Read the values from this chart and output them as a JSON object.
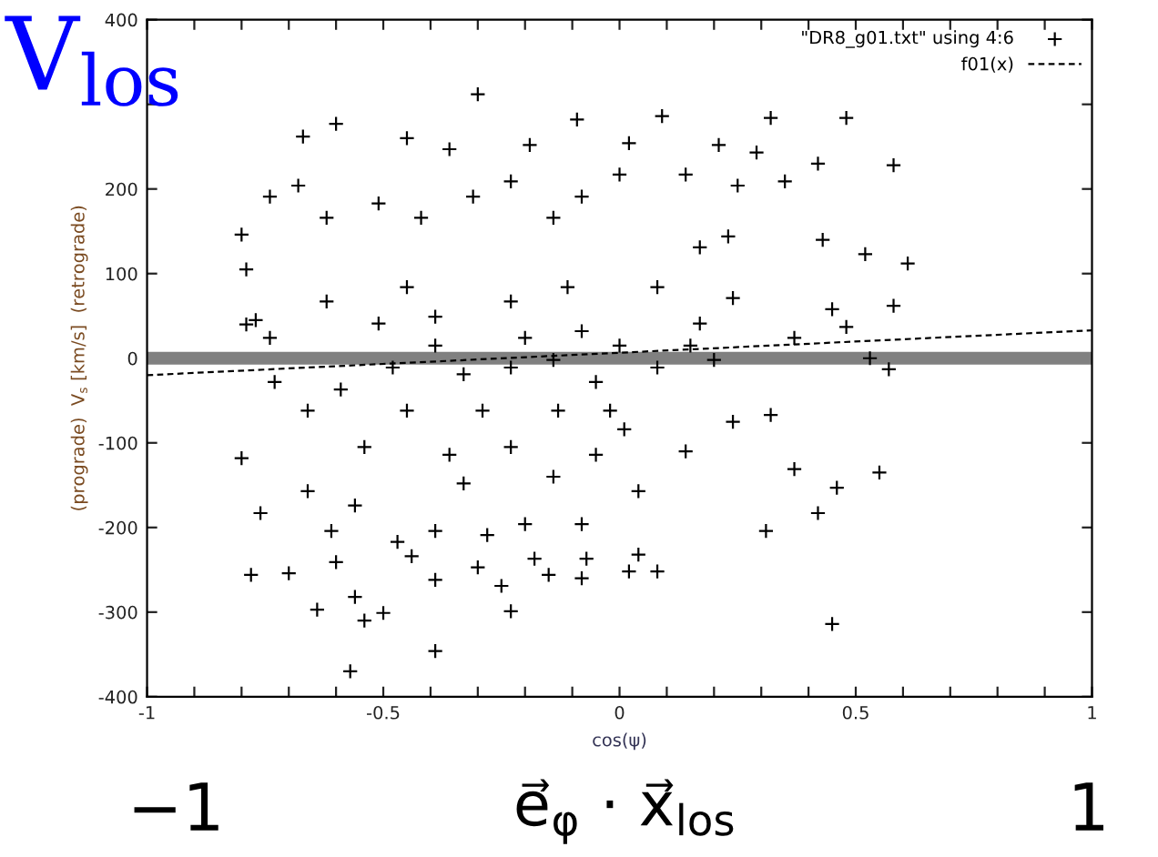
{
  "chart_data": {
    "type": "scatter",
    "xlabel": "cos(ψ)",
    "ylabel": "(prograde)  V$_{s}$ [km/s]  (retrograde)",
    "annotations": [
      "V$_{los}$",
      "−1",
      "e⃗$_{φ}$ · x⃗$_{los}$",
      "1"
    ],
    "xlim": [
      -1,
      1
    ],
    "ylim": [
      -400,
      400
    ],
    "xticks": [
      -1,
      {
        "value": -0.9,
        "label": null
      },
      {
        "value": -0.8,
        "label": null
      },
      {
        "value": -0.7,
        "label": null
      },
      {
        "value": -0.6,
        "label": null
      },
      -0.5,
      {
        "value": -0.4,
        "label": null
      },
      {
        "value": -0.3,
        "label": null
      },
      {
        "value": -0.2,
        "label": null
      },
      {
        "value": -0.1,
        "label": null
      },
      0,
      {
        "value": 0.1,
        "label": null
      },
      {
        "value": 0.2,
        "label": null
      },
      {
        "value": 0.3,
        "label": null
      },
      {
        "value": 0.4,
        "label": null
      },
      0.5,
      {
        "value": 0.6,
        "label": null
      },
      {
        "value": 0.7,
        "label": null
      },
      {
        "value": 0.8,
        "label": null
      },
      {
        "value": 0.9,
        "label": null
      },
      1
    ],
    "yticks": [
      -400,
      -300,
      -200,
      -100,
      0,
      100,
      200,
      {
        "value": 300,
        "label": null
      },
      400
    ],
    "grid": false,
    "legend": "top right",
    "ref_lines": [
      {
        "axis": "y",
        "value": 0,
        "color": "#808080"
      }
    ],
    "series": [
      {
        "name": "\"DR8_g01.txt\" using 4:6",
        "color": "#000000",
        "marker": "cross",
        "x": [
          -0.3,
          -0.67,
          -0.6,
          -0.09,
          0.09,
          0.32,
          0.48,
          0.58,
          0.61,
          0.52,
          -0.8,
          -0.74,
          -0.68,
          -0.45,
          -0.36,
          -0.19,
          0.02,
          0.21,
          0.29,
          0.42,
          0.14,
          0.25,
          -0.79,
          -0.62,
          -0.51,
          -0.31,
          -0.23,
          -0.08,
          0.0,
          0.35,
          0.43,
          0.17,
          0.23,
          -0.14,
          -0.42,
          -0.8,
          -0.76,
          -0.66,
          -0.61,
          -0.56,
          -0.47,
          -0.39,
          -0.28,
          -0.2,
          -0.08,
          0.31,
          0.42,
          0.46,
          0.55,
          0.58,
          0.57,
          0.53,
          0.48,
          0.37,
          0.45,
          0.37,
          0.32,
          0.24,
          0.14,
          0.04,
          0.01,
          -0.36,
          -0.45,
          -0.54,
          -0.66,
          -0.77,
          -0.79,
          -0.74,
          -0.62,
          -0.51,
          -0.39,
          -0.23,
          -0.08,
          0.08,
          0.17,
          0.24,
          -0.33,
          -0.23,
          -0.14,
          -0.05,
          0.08,
          0.2,
          -0.48,
          -0.59,
          -0.73,
          -0.29,
          -0.13,
          -0.02,
          -0.39,
          -0.2,
          0.0,
          -0.23,
          -0.14,
          -0.05,
          -0.33,
          0.15,
          -0.45,
          -0.11,
          -0.78,
          -0.7,
          -0.6,
          -0.64,
          -0.56,
          -0.54,
          -0.5,
          -0.57,
          -0.39,
          -0.39,
          -0.44,
          -0.3,
          -0.25,
          -0.23,
          -0.18,
          -0.15,
          -0.08,
          -0.07,
          0.02,
          0.04,
          0.08,
          0.45
        ],
        "values": [
          312,
          262,
          277,
          282,
          286,
          284,
          284,
          228,
          112,
          123,
          146,
          191,
          204,
          260,
          247,
          252,
          254,
          252,
          243,
          230,
          217,
          204,
          105,
          166,
          183,
          191,
          209,
          191,
          217,
          209,
          140,
          131,
          144,
          166,
          166,
          -118,
          -183,
          -157,
          -204,
          -174,
          -217,
          -204,
          -209,
          -196,
          -196,
          -204,
          -183,
          -153,
          -135,
          62,
          -13,
          0,
          37,
          24,
          58,
          -131,
          -67,
          -75,
          -110,
          -157,
          -84,
          -114,
          -62,
          -105,
          -62,
          45,
          40,
          24,
          67,
          41,
          49,
          67,
          32,
          84,
          41,
          71,
          -19,
          -11,
          -2,
          -28,
          -11,
          -2,
          -11,
          -37,
          -28,
          -62,
          -62,
          -62,
          15,
          24,
          15,
          -105,
          -140,
          -114,
          -148,
          15,
          84,
          84,
          -256,
          -254,
          -241,
          -297,
          -282,
          -310,
          -301,
          -370,
          -346,
          -262,
          -234,
          -247,
          -269,
          -299,
          -237,
          -256,
          -260,
          -237,
          -252,
          -232,
          -252,
          -314
        ]
      },
      {
        "name": "f01(x)",
        "type": "line",
        "color": "#000000",
        "line_style": "dashed",
        "x": [
          -1,
          1
        ],
        "values": [
          -20,
          33
        ]
      }
    ]
  }
}
